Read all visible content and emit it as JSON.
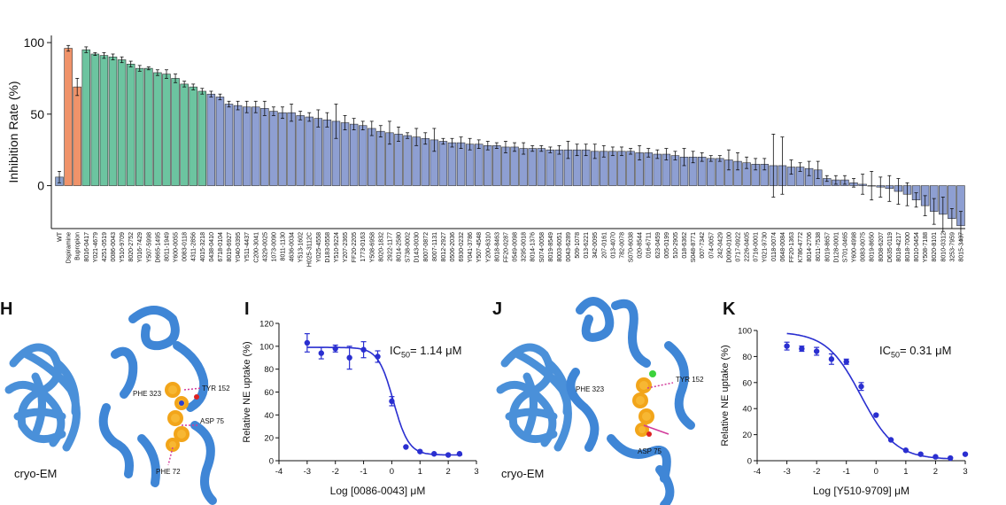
{
  "panels": {
    "H": {
      "letter": "H",
      "caption": "cryo-EM",
      "residues": [
        "PHE 323",
        "TYR 152",
        "ASP 75",
        "PHE 72"
      ]
    },
    "I": {
      "letter": "I"
    },
    "J": {
      "letter": "J",
      "caption": "cryo-EM",
      "residues": [
        "PHE 323",
        "TYR 152",
        "ASP 75"
      ]
    },
    "K": {
      "letter": "K"
    }
  },
  "colors": {
    "wt": "#8aa0cc",
    "reference": "#f0936a",
    "top": "#6cc4a0",
    "rest": "#8e9fd2",
    "fit": "#2a2fd0",
    "protein": "#4a90d9",
    "ligand": "#f2a51a"
  },
  "chart_data": [
    {
      "type": "bar",
      "ylabel": "Inhibition Rate (%)",
      "ylim": [
        -30,
        105
      ],
      "yticks": [
        0,
        50,
        100
      ],
      "categories": [
        "WT",
        "Dspiramine",
        "Bupropion",
        "8016-0417",
        "Y021-4679",
        "4251-0519",
        "0086-0043",
        "Y510-9709",
        "8020-2752",
        "Y016-7429",
        "Y507-5998",
        "D665-1495",
        "8011-1949",
        "Y600-0055",
        "0083-0118",
        "4311-2856",
        "4015-3218",
        "0438-0410",
        "6718-0104",
        "8019-6927",
        "Y040-0395",
        "Y511-4437",
        "C200-3041",
        "4329-0025",
        "1073-0090",
        "8011-1130",
        "4636-0034",
        "Y513-1602",
        "H025-3112C",
        "Y025-4558",
        "D183-0558",
        "Y510-9224",
        "Y207-2365",
        "FF20-2205",
        "1773-0163",
        "Y508-6958",
        "8020-1832",
        "2922-1177",
        "8014-2580",
        "S738-0002",
        "D143-0030",
        "8007-0872",
        "8007-1131",
        "8012-2927",
        "0506-2036",
        "6930-0232",
        "Y041-3786",
        "Y507-4548",
        "Y200-6310",
        "8018-8463",
        "FF20-0287",
        "0549-0098",
        "3295-0018",
        "8014-1376",
        "S074-0058",
        "8019-8549",
        "8003-6051",
        "0043-6289",
        "509-1078",
        "013-6221",
        "342-0095",
        "207-0161",
        "013-4070",
        "782-0078",
        "S070-6038",
        "020-8544",
        "016-6711",
        "623-0459",
        "005-0199",
        "510-2905",
        "018-6362",
        "S048-8771",
        "007-7342",
        "074-0057",
        "242-0429",
        "D090-0100",
        "0717-0922",
        "2226-0405",
        "0716-0001",
        "Y021-9730",
        "0118-0074",
        "0648-0084",
        "FF20-1363",
        "K786-4772",
        "8014-2706",
        "8011-7538",
        "8019-8657",
        "D128-0001",
        "S701-0465",
        "Y600-4998",
        "0083-0075",
        "8019-8650",
        "8008-6207",
        "D635-0119",
        "8018-4217",
        "8018-7000",
        "8010-0454",
        "Y508-7188",
        "8020-8101",
        "8010-0312",
        "3253-7959",
        "8015-3437"
      ],
      "values": [
        6,
        96,
        69,
        95,
        92,
        91,
        90,
        88,
        85,
        82,
        82,
        79,
        78,
        75,
        71,
        69,
        66,
        64,
        62,
        57,
        56,
        55,
        55,
        54,
        52,
        51,
        51,
        49,
        48,
        47,
        46,
        45,
        44,
        43,
        42,
        40,
        38,
        37,
        36,
        35,
        34,
        33,
        32,
        31,
        30,
        30,
        29,
        29,
        28,
        28,
        27,
        27,
        26,
        26,
        26,
        25,
        25,
        25,
        25,
        25,
        24,
        24,
        24,
        24,
        24,
        23,
        23,
        22,
        22,
        21,
        20,
        20,
        20,
        19,
        19,
        18,
        17,
        16,
        15,
        15,
        14,
        14,
        13,
        13,
        12,
        11,
        5,
        4,
        4,
        2,
        1,
        0,
        -1,
        -2,
        -4,
        -6,
        -10,
        -14,
        -18,
        -20,
        -23,
        -28
      ],
      "errors": [
        4,
        2,
        6,
        2,
        1,
        2,
        2,
        2,
        2,
        2,
        1,
        2,
        3,
        3,
        2,
        2,
        2,
        2,
        2,
        2,
        3,
        4,
        4,
        5,
        3,
        4,
        6,
        3,
        3,
        6,
        5,
        12,
        5,
        4,
        3,
        5,
        4,
        8,
        5,
        2,
        6,
        4,
        8,
        2,
        3,
        4,
        4,
        3,
        3,
        2,
        4,
        3,
        4,
        2,
        2,
        2,
        3,
        6,
        4,
        4,
        5,
        4,
        3,
        3,
        2,
        5,
        3,
        3,
        4,
        3,
        6,
        4,
        3,
        2,
        2,
        7,
        6,
        4,
        4,
        4,
        22,
        20,
        5,
        3,
        5,
        6,
        2,
        3,
        3,
        3,
        7,
        10,
        7,
        9,
        9,
        8,
        5,
        7,
        9,
        12,
        7,
        10
      ],
      "groups": [
        0,
        1,
        1,
        2,
        2,
        2,
        2,
        2,
        2,
        2,
        2,
        2,
        2,
        2,
        2,
        2,
        2,
        3,
        3,
        3,
        3,
        3,
        3,
        3,
        3,
        3,
        3,
        3,
        3,
        3,
        3,
        3,
        3,
        3,
        3,
        3,
        3,
        3,
        3,
        3,
        3,
        3,
        3,
        3,
        3,
        3,
        3,
        3,
        3,
        3,
        3,
        3,
        3,
        3,
        3,
        3,
        3,
        3,
        3,
        3,
        3,
        3,
        3,
        3,
        3,
        3,
        3,
        3,
        3,
        3,
        3,
        3,
        3,
        3,
        3,
        3,
        3,
        3,
        3,
        3,
        3,
        3,
        3,
        3,
        3,
        3,
        3,
        3,
        3,
        3,
        3,
        3,
        3,
        3,
        3,
        3,
        3,
        3,
        3,
        3,
        3,
        3
      ]
    },
    {
      "type": "scatter",
      "xlabel": "Log [0086-0043] μM",
      "ylabel": "Relative NE uptake (%)",
      "ic50_label": "IC",
      "ic50_sub": "50",
      "ic50_value": "= 1.14 μM",
      "xlim": [
        -4,
        3
      ],
      "ylim": [
        0,
        120
      ],
      "xticks": [
        -4,
        -3,
        -2,
        -1,
        0,
        1,
        2,
        3
      ],
      "yticks": [
        0,
        20,
        40,
        60,
        80,
        100,
        120
      ],
      "x": [
        -3,
        -2.5,
        -2,
        -1.5,
        -1,
        -0.5,
        0,
        0.5,
        1,
        1.5,
        2,
        2.4
      ],
      "y": [
        103,
        94,
        98,
        90,
        97,
        91,
        52,
        12,
        8,
        6,
        5,
        6
      ],
      "err": [
        8,
        5,
        3,
        10,
        7,
        5,
        4,
        0,
        0,
        0,
        0,
        0
      ],
      "fit": {
        "top": 99,
        "bottom": 5,
        "logIC50": 0.057,
        "hill": 1.6
      }
    },
    {
      "type": "scatter",
      "xlabel": "Log [Y510-9709] μM",
      "ylabel": "Relative NE uptake (%)",
      "ic50_label": "IC",
      "ic50_sub": "50",
      "ic50_value": "= 0.31 μM",
      "xlim": [
        -4,
        3
      ],
      "ylim": [
        0,
        100
      ],
      "xticks": [
        -4,
        -3,
        -2,
        -1,
        0,
        1,
        2,
        3
      ],
      "yticks": [
        0,
        20,
        40,
        60,
        80,
        100
      ],
      "x": [
        -3,
        -2.5,
        -2,
        -1.5,
        -1,
        -0.5,
        0,
        0.5,
        1,
        1.5,
        2,
        2.5,
        3
      ],
      "y": [
        88,
        86,
        84,
        78,
        76,
        57,
        35,
        16,
        8,
        5,
        3,
        2,
        5
      ],
      "err": [
        3,
        2,
        3,
        4,
        2,
        3,
        0,
        0,
        0,
        0,
        0,
        0,
        0
      ],
      "fit": {
        "top": 99,
        "bottom": 1,
        "logIC50": -0.51,
        "hill": 0.75
      }
    }
  ]
}
